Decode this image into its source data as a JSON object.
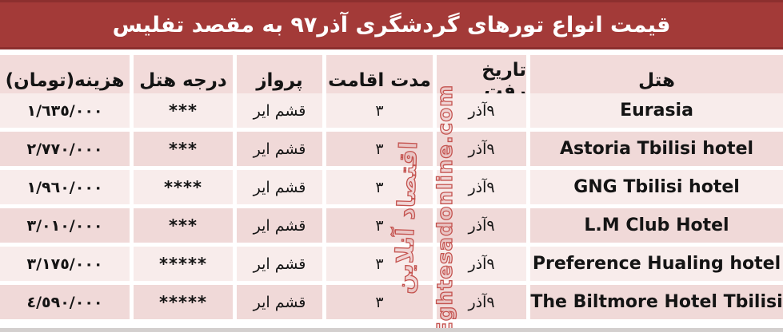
{
  "title": "قیمت انواع تورهای گردشگری آذر۹۷ به مقصد تفلیس",
  "table": {
    "headers": [
      "هتل",
      "تاریخ رفت",
      "مدت اقامت",
      "پرواز",
      "درجه هتل",
      "هزینه(تومان)"
    ],
    "rows": [
      {
        "hotel": "Eurasia",
        "date": "۹آذر",
        "duration": "٣",
        "flight": "قشم ایر",
        "grade": "***",
        "price": "١/٦٣٥/٠٠٠"
      },
      {
        "hotel": "Astoria Tbilisi hotel",
        "date": "۹آذر",
        "duration": "٣",
        "flight": "قشم ایر",
        "grade": "***",
        "price": "٢/٧٧٠/٠٠٠"
      },
      {
        "hotel": "GNG Tbilisi hotel",
        "date": "۹آذر",
        "duration": "٣",
        "flight": "قشم ایر",
        "grade": "****",
        "price": "١/٩٦٠/٠٠٠"
      },
      {
        "hotel": "L.M Club Hotel",
        "date": "۹آذر",
        "duration": "٣",
        "flight": "قشم ایر",
        "grade": "***",
        "price": "٣/٠١٠/٠٠٠"
      },
      {
        "hotel": "Preference Hualing hotel",
        "date": "۹آذر",
        "duration": "٣",
        "flight": "قشم ایر",
        "grade": "*****",
        "price": "٣/١٧٥/٠٠٠"
      },
      {
        "hotel": "The Biltmore Hotel Tbilisi",
        "date": "۹آذر",
        "duration": "٣",
        "flight": "قشم ایر",
        "grade": "*****",
        "price": "٤/٥٩٠/٠٠٠"
      }
    ]
  },
  "watermark": {
    "site": "Eghtesadonline.com",
    "brand_fa": "اقتصاد آنلاین"
  },
  "colors": {
    "title_bg": "#a33a38",
    "title_border": "#8c2f2e",
    "header_bg": "#f2dbda",
    "row_odd_bg": "#f8eceb",
    "row_even_bg": "#f0d9d8",
    "text": "#141414",
    "watermark": "#c4534f"
  }
}
